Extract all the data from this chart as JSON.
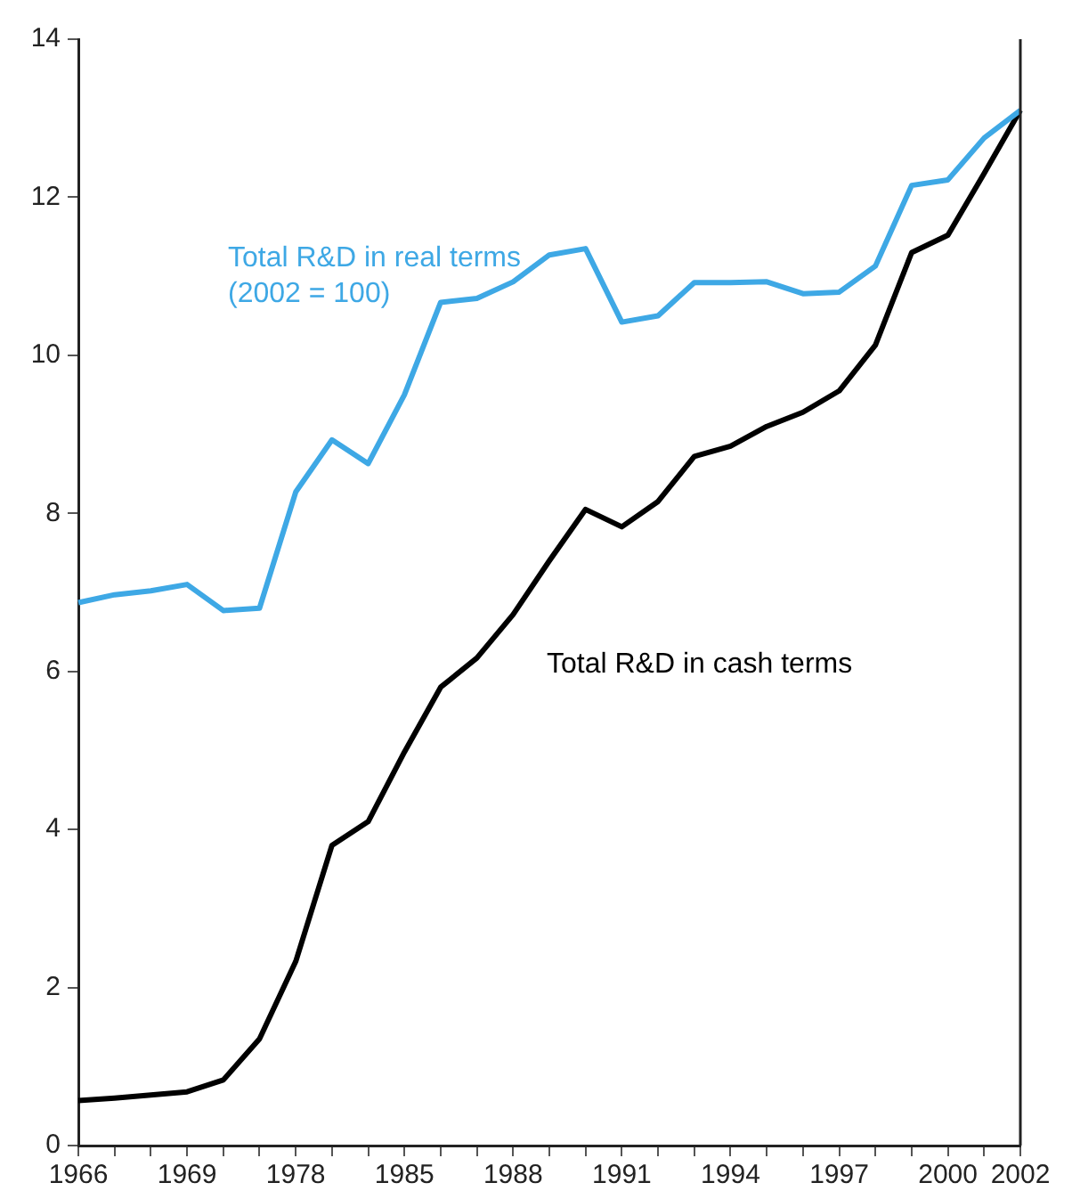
{
  "chart_data": {
    "type": "line",
    "categories": [
      "1966",
      null,
      null,
      "1969",
      null,
      null,
      "1978",
      null,
      null,
      "1985",
      null,
      null,
      "1988",
      null,
      null,
      "1991",
      null,
      null,
      "1994",
      null,
      null,
      "1997",
      null,
      null,
      "2000",
      null,
      "2002"
    ],
    "series": [
      {
        "name": "Total R&D in real terms\n(2002 = 100)",
        "color": "#3ea8e5",
        "values": [
          6.87,
          6.97,
          7.02,
          7.1,
          6.77,
          6.8,
          8.27,
          8.93,
          8.63,
          9.5,
          10.67,
          10.72,
          10.93,
          11.27,
          11.35,
          10.42,
          10.5,
          10.92,
          10.92,
          10.93,
          10.78,
          10.8,
          11.13,
          12.15,
          12.22,
          12.75,
          13.1
        ]
      },
      {
        "name": "Total R&D in cash terms",
        "color": "#000000",
        "values": [
          0.57,
          0.6,
          0.64,
          0.68,
          0.83,
          1.35,
          2.33,
          3.8,
          4.1,
          4.98,
          5.8,
          6.17,
          6.72,
          7.4,
          8.05,
          7.83,
          8.15,
          8.72,
          8.85,
          9.1,
          9.28,
          9.55,
          10.13,
          11.3,
          11.52,
          12.3,
          13.1
        ]
      }
    ],
    "ylim": [
      0,
      14
    ],
    "yticks": [
      0,
      2,
      4,
      6,
      8,
      10,
      12,
      14
    ],
    "grid": false,
    "legend": false,
    "marker": "none",
    "line_style": "solid"
  }
}
